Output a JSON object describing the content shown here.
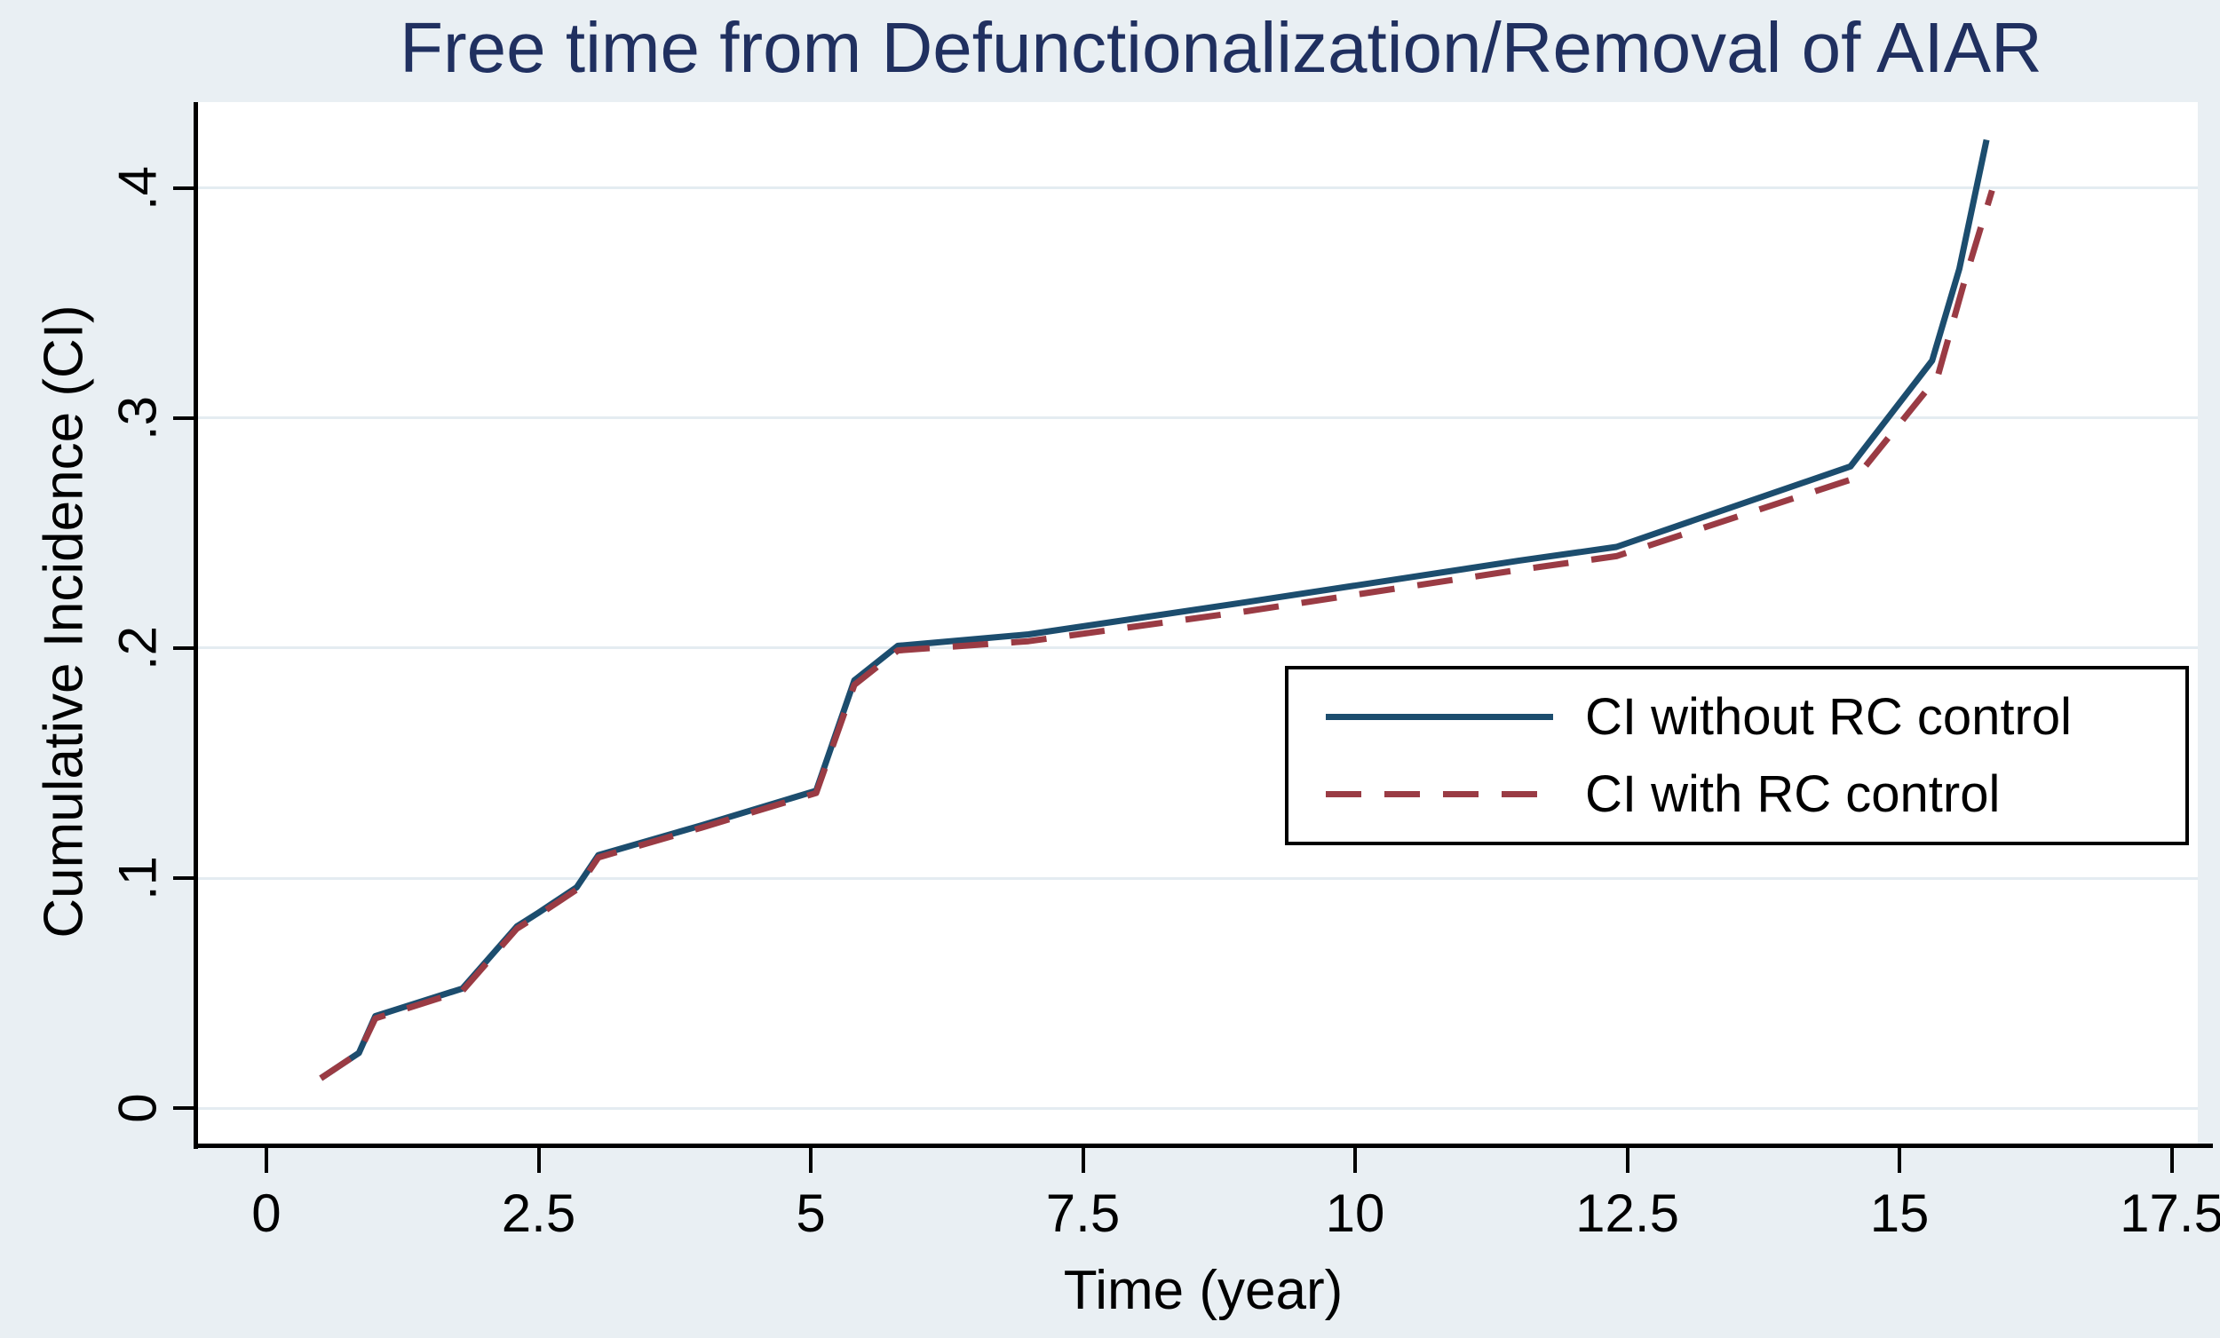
{
  "title": "Free time from Defunctionalization/Removal of AIAR",
  "title_color": "#203060",
  "background_color": "#e9eff3",
  "plot_background": "#ffffff",
  "gridline_color": "#e4ecf1",
  "axis_color": "#000000",
  "chart_data": {
    "type": "line",
    "title": "Free time from Defunctionalization/Removal of AIAR",
    "xlabel": "Time (year)",
    "ylabel": "Cumulative Incidence (CI)",
    "xlim": [
      -0.628,
      17.74
    ],
    "ylim": [
      -0.0154,
      0.4374
    ],
    "x_ticks": [
      0,
      2.5,
      5,
      7.5,
      10,
      12.5,
      15,
      17.5
    ],
    "x_tick_labels": [
      "0",
      "2.5",
      "5",
      "7.5",
      "10",
      "12.5",
      "15",
      "17.5"
    ],
    "y_ticks": [
      0,
      0.1,
      0.2,
      0.3,
      0.4
    ],
    "y_tick_labels": [
      "0",
      ".1",
      ".2",
      ".3",
      ".4"
    ],
    "grid": "horizontal",
    "legend_position": "inside-right",
    "series": [
      {
        "name": "CI without RC control",
        "color": "#1c4d6e",
        "style": "solid",
        "points": [
          [
            0.5,
            0.013
          ],
          [
            0.85,
            0.024
          ],
          [
            1.0,
            0.04
          ],
          [
            1.2,
            0.043
          ],
          [
            1.8,
            0.052
          ],
          [
            2.3,
            0.079
          ],
          [
            2.5,
            0.085
          ],
          [
            2.85,
            0.096
          ],
          [
            3.05,
            0.11
          ],
          [
            4.0,
            0.123
          ],
          [
            5.05,
            0.138
          ],
          [
            5.4,
            0.186
          ],
          [
            5.8,
            0.201
          ],
          [
            7.0,
            0.206
          ],
          [
            9.0,
            0.22
          ],
          [
            11.5,
            0.238
          ],
          [
            12.4,
            0.244
          ],
          [
            14.55,
            0.279
          ],
          [
            15.3,
            0.325
          ],
          [
            15.55,
            0.365
          ],
          [
            15.8,
            0.421
          ]
        ]
      },
      {
        "name": "CI with RC control",
        "color": "#9a3b44",
        "style": "dashed",
        "points": [
          [
            0.5,
            0.013
          ],
          [
            0.85,
            0.024
          ],
          [
            1.0,
            0.039
          ],
          [
            1.2,
            0.042
          ],
          [
            1.8,
            0.051
          ],
          [
            2.3,
            0.078
          ],
          [
            2.5,
            0.084
          ],
          [
            2.85,
            0.095
          ],
          [
            3.05,
            0.109
          ],
          [
            4.0,
            0.122
          ],
          [
            5.05,
            0.137
          ],
          [
            5.4,
            0.184
          ],
          [
            5.8,
            0.199
          ],
          [
            7.0,
            0.203
          ],
          [
            9.0,
            0.216
          ],
          [
            11.5,
            0.234
          ],
          [
            12.4,
            0.24
          ],
          [
            14.6,
            0.274
          ],
          [
            15.35,
            0.318
          ],
          [
            15.6,
            0.36
          ],
          [
            15.85,
            0.399
          ]
        ]
      }
    ]
  },
  "legend": {
    "entries": [
      {
        "label": "CI without RC control"
      },
      {
        "label": "CI with RC control"
      }
    ]
  }
}
